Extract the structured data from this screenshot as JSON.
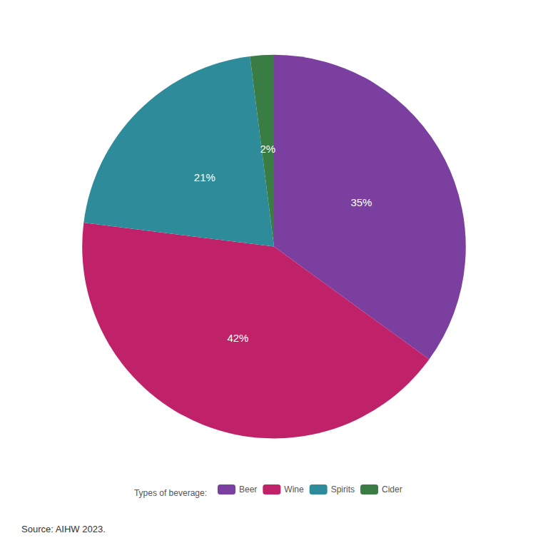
{
  "chart_data": {
    "type": "pie",
    "categories": [
      "Beer",
      "Wine",
      "Spirits",
      "Cider"
    ],
    "values": [
      35,
      42,
      21,
      2
    ],
    "value_labels": [
      "35%",
      "42%",
      "21%",
      "2%"
    ],
    "colors": [
      "#7B3FA0",
      "#C0226A",
      "#2E8B9A",
      "#3A7D44"
    ],
    "data_labels": true,
    "legend": "bottom",
    "legend_title": "Types of beverage:",
    "annotations": [
      "Source: AIHW 2023."
    ]
  }
}
